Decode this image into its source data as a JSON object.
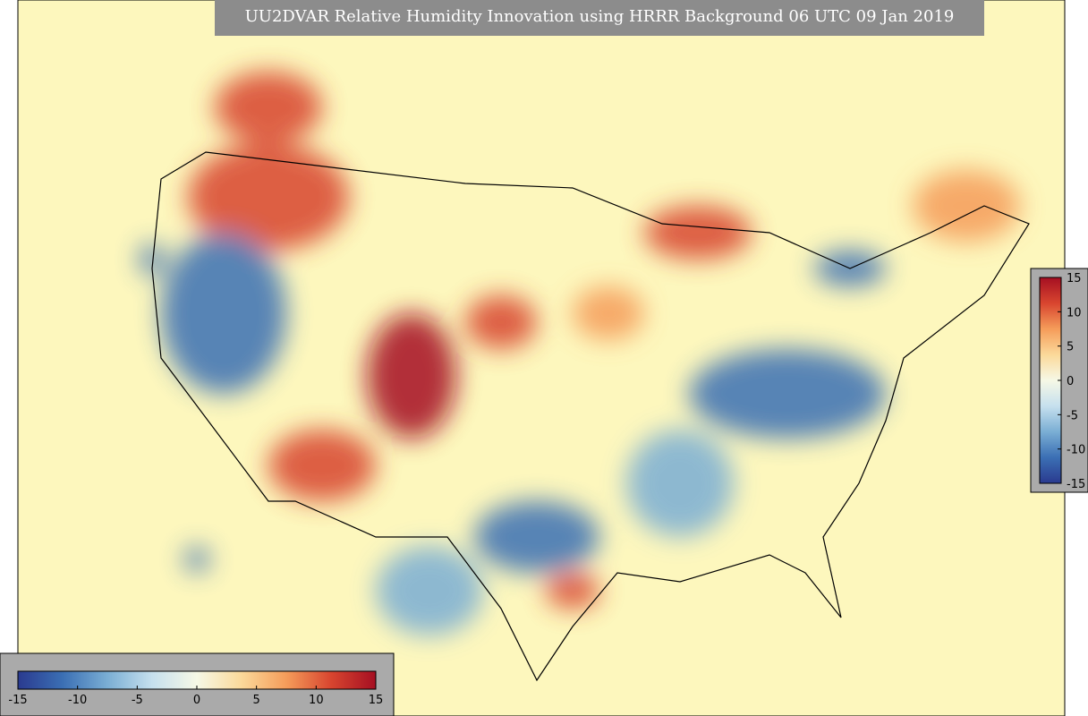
{
  "title": "UU2DVAR Relative Humidity Innovation using HRRR Background 06 UTC 09 Jan 2019",
  "colorbar": {
    "lim": [
      -15,
      15
    ],
    "ticks": [
      -15,
      -10,
      -5,
      0,
      5,
      10,
      15
    ],
    "colors": [
      "#2a3a8f",
      "#3b6fb4",
      "#7aaed4",
      "#c6e0ee",
      "#f6f8e6",
      "#fbd99a",
      "#f59c5a",
      "#d8452f",
      "#a50f22"
    ]
  }
}
